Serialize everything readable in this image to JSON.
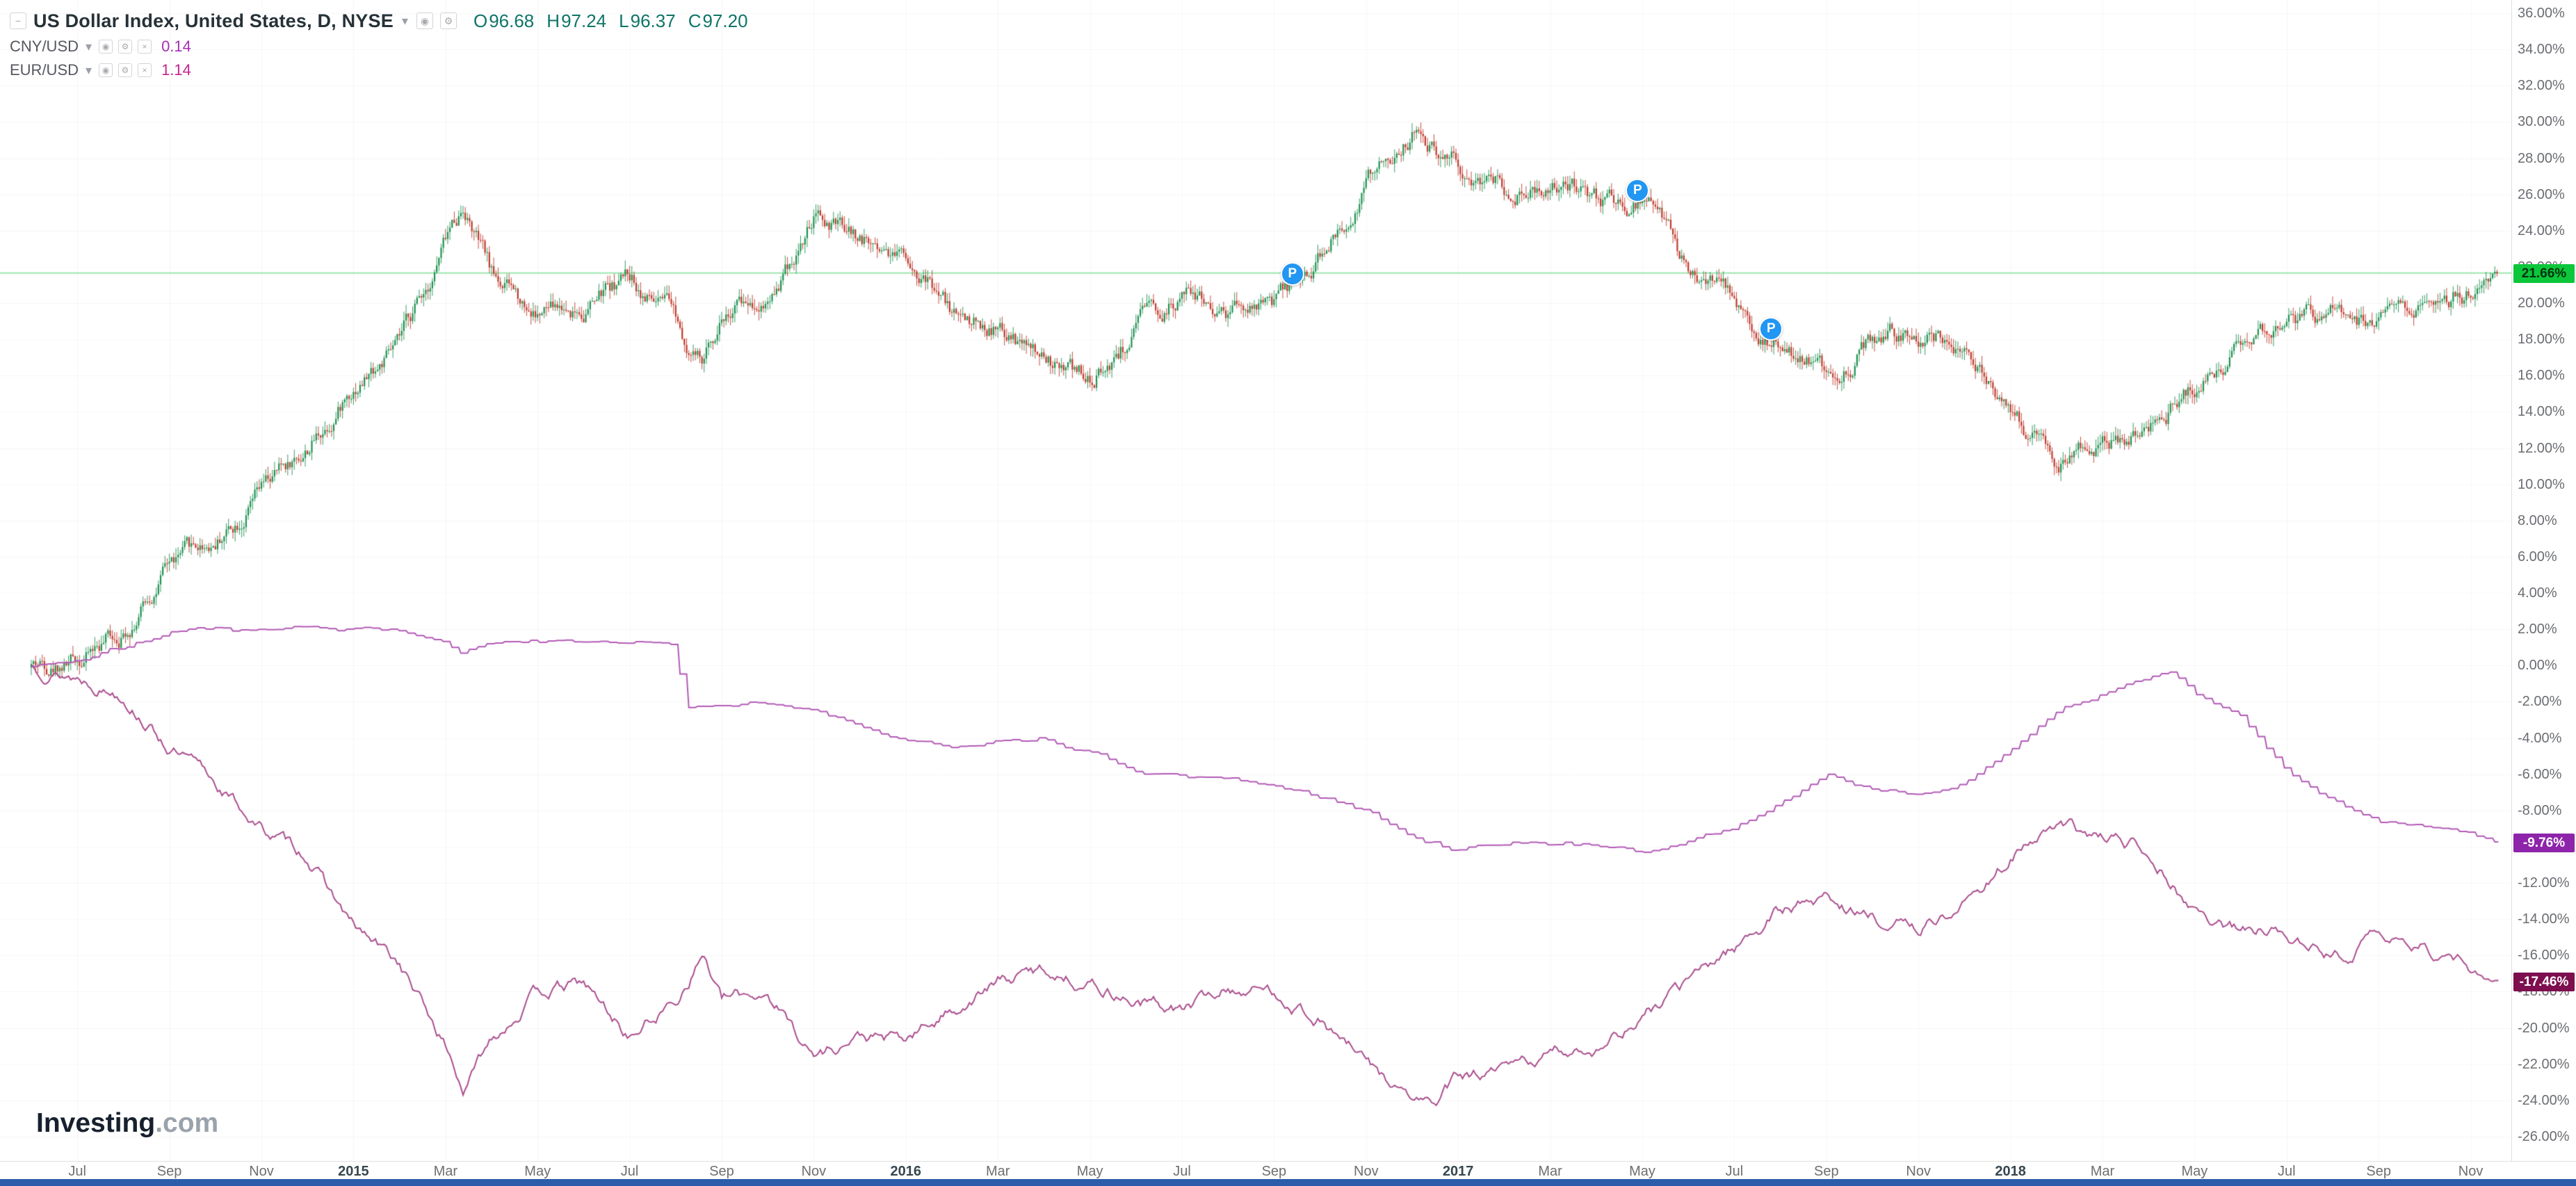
{
  "icons": {
    "collapse": "−",
    "chevron_down": "▾",
    "eye": "◉",
    "settings": "⚙",
    "close": "×",
    "marker": "P"
  },
  "header": {
    "symbol_title": "US Dollar Index, United States, D, NYSE",
    "ohlc_color": "#0e7568",
    "ohlc": {
      "open_label": "O",
      "open": "96.68",
      "high_label": "H",
      "high": "97.24",
      "low_label": "L",
      "low": "96.37",
      "close_label": "C",
      "close": "97.20"
    }
  },
  "legend": {
    "rows": [
      {
        "name": "CNY/USD",
        "value": "0.14",
        "value_color": "#a32fb5"
      },
      {
        "name": "EUR/USD",
        "value": "1.14",
        "value_color": "#c2258d"
      }
    ]
  },
  "watermark": {
    "brand": "Investing",
    "suffix": ".com"
  },
  "price_tags": [
    {
      "name": "dxy-last",
      "label": "21.66%",
      "value": 21.66,
      "bg": "#0cc row",
      "fg": "#00330f"
    },
    {
      "name": "cny-last",
      "label": "-9.76%",
      "value": -9.76,
      "bg": "#8e24aa",
      "fg": "#ffffff"
    },
    {
      "name": "eur-last",
      "label": "-17.46%",
      "value": -17.46,
      "bg": "#7d0f4e",
      "fg": "#ffffff"
    }
  ],
  "footer": {
    "strip_color": "#2b5daa"
  },
  "chart_data": {
    "type": "candlestick+line",
    "title": "US Dollar Index vs CNY/USD and EUR/USD, cumulative % change, daily",
    "x_start": "2014-06",
    "x_end": "2018-11",
    "grid": true,
    "legend_position": "top-left",
    "y_axis": {
      "min": -26,
      "max": 36,
      "step": 2,
      "unit": "%",
      "labels": [
        "36.00%",
        "34.00%",
        "32.00%",
        "30.00%",
        "28.00%",
        "26.00%",
        "24.00%",
        "22.00%",
        "20.00%",
        "18.00%",
        "16.00%",
        "14.00%",
        "12.00%",
        "10.00%",
        "8.00%",
        "6.00%",
        "4.00%",
        "2.00%",
        "0.00%",
        "-2.00%",
        "-4.00%",
        "-6.00%",
        "-8.00%",
        "-10.00%",
        "-12.00%",
        "-14.00%",
        "-16.00%",
        "-18.00%",
        "-20.00%",
        "-22.00%",
        "-24.00%",
        "-26.00%"
      ]
    },
    "x_ticks": [
      {
        "label": "Jul",
        "t": 1
      },
      {
        "label": "Sep",
        "t": 3
      },
      {
        "label": "Nov",
        "t": 5
      },
      {
        "label": "2015",
        "t": 7,
        "year": true
      },
      {
        "label": "Mar",
        "t": 9
      },
      {
        "label": "May",
        "t": 11
      },
      {
        "label": "Jul",
        "t": 13
      },
      {
        "label": "Sep",
        "t": 15
      },
      {
        "label": "Nov",
        "t": 17
      },
      {
        "label": "2016",
        "t": 19,
        "year": true
      },
      {
        "label": "Mar",
        "t": 21
      },
      {
        "label": "May",
        "t": 23
      },
      {
        "label": "Jul",
        "t": 25
      },
      {
        "label": "Sep",
        "t": 27
      },
      {
        "label": "Nov",
        "t": 29
      },
      {
        "label": "2017",
        "t": 31,
        "year": true
      },
      {
        "label": "Mar",
        "t": 33
      },
      {
        "label": "May",
        "t": 35
      },
      {
        "label": "Jul",
        "t": 37
      },
      {
        "label": "Sep",
        "t": 39
      },
      {
        "label": "Nov",
        "t": 41
      },
      {
        "label": "2018",
        "t": 43,
        "year": true
      },
      {
        "label": "Mar",
        "t": 45
      },
      {
        "label": "May",
        "t": 47
      },
      {
        "label": "Jul",
        "t": 49
      },
      {
        "label": "Sep",
        "t": 51
      },
      {
        "label": "Nov",
        "t": 53
      }
    ],
    "reference_line": {
      "value": 21.66,
      "color": "#4ccf6e"
    },
    "markers": [
      {
        "label": "P",
        "t": 27.4,
        "v": 21.6
      },
      {
        "label": "P",
        "t": 34.9,
        "v": 26.2
      },
      {
        "label": "P",
        "t": 37.8,
        "v": 18.6
      }
    ],
    "series": [
      {
        "name": "US Dollar Index",
        "type": "candlestick",
        "up_color": "#1e9150",
        "down_color": "#c0392b",
        "last_label": "21.66%",
        "last_value": 21.66,
        "anchors": [
          [
            0,
            0
          ],
          [
            1,
            0.4
          ],
          [
            2,
            2
          ],
          [
            3,
            5.5
          ],
          [
            4,
            7
          ],
          [
            5,
            9.5
          ],
          [
            6,
            12
          ],
          [
            7,
            15.5
          ],
          [
            8,
            17.5
          ],
          [
            9,
            23.5
          ],
          [
            9.4,
            25.5
          ],
          [
            10,
            21.5
          ],
          [
            11,
            19.5
          ],
          [
            12,
            19.8
          ],
          [
            13,
            21.5
          ],
          [
            14,
            19
          ],
          [
            14.6,
            16.5
          ],
          [
            15,
            19.5
          ],
          [
            16,
            20.5
          ],
          [
            17,
            24.5
          ],
          [
            18,
            23.5
          ],
          [
            19,
            23
          ],
          [
            20,
            19.5
          ],
          [
            21,
            18.5
          ],
          [
            22,
            16.5
          ],
          [
            23,
            15.8
          ],
          [
            24,
            18.5
          ],
          [
            25,
            20.5
          ],
          [
            26,
            19.5
          ],
          [
            27,
            19.6
          ],
          [
            28,
            22.5
          ],
          [
            29,
            26.5
          ],
          [
            30,
            29.3
          ],
          [
            31,
            28
          ],
          [
            32,
            26.5
          ],
          [
            33,
            27
          ],
          [
            34,
            25.5
          ],
          [
            35,
            25.8
          ],
          [
            36,
            22
          ],
          [
            37,
            20.5
          ],
          [
            38,
            17.5
          ],
          [
            39,
            16.2
          ],
          [
            40,
            18
          ],
          [
            41,
            18.5
          ],
          [
            42,
            17.5
          ],
          [
            43,
            14
          ],
          [
            44,
            11.3
          ],
          [
            45,
            12.5
          ],
          [
            46,
            12.8
          ],
          [
            47,
            15.5
          ],
          [
            48,
            17.5
          ],
          [
            49,
            18.5
          ],
          [
            50,
            19.5
          ],
          [
            51,
            18.7
          ],
          [
            52,
            19.8
          ],
          [
            53,
            20.8
          ],
          [
            53.6,
            21.66
          ]
        ]
      },
      {
        "name": "CNY/USD",
        "type": "line",
        "color": "#b25ab6",
        "last_label": "-9.76%",
        "last_value": -9.76,
        "anchors": [
          [
            0,
            0
          ],
          [
            1,
            0.3
          ],
          [
            2,
            1
          ],
          [
            3,
            1.8
          ],
          [
            4,
            2
          ],
          [
            5,
            1.9
          ],
          [
            6,
            2.1
          ],
          [
            7,
            2.1
          ],
          [
            8,
            1.9
          ],
          [
            9,
            1.2
          ],
          [
            9.3,
            0.7
          ],
          [
            10,
            1.2
          ],
          [
            11,
            1.3
          ],
          [
            12,
            1.3
          ],
          [
            13,
            1.3
          ],
          [
            14,
            1.2
          ],
          [
            14.2,
            -2.3
          ],
          [
            15,
            -2.2
          ],
          [
            16,
            -2.1
          ],
          [
            17,
            -2.5
          ],
          [
            18,
            -3.3
          ],
          [
            19,
            -4.2
          ],
          [
            20,
            -4.5
          ],
          [
            21,
            -4.2
          ],
          [
            22,
            -4
          ],
          [
            23,
            -4.8
          ],
          [
            24,
            -5.8
          ],
          [
            25,
            -6.2
          ],
          [
            26,
            -6.3
          ],
          [
            27,
            -6.6
          ],
          [
            28,
            -7.2
          ],
          [
            29,
            -8
          ],
          [
            30,
            -9.5
          ],
          [
            31,
            -10.2
          ],
          [
            32,
            -9.8
          ],
          [
            33,
            -9.8
          ],
          [
            34,
            -9.9
          ],
          [
            35,
            -10.3
          ],
          [
            36,
            -9.7
          ],
          [
            37,
            -9
          ],
          [
            38,
            -7.6
          ],
          [
            39,
            -6
          ],
          [
            40,
            -6.8
          ],
          [
            41,
            -7.2
          ],
          [
            42,
            -6.6
          ],
          [
            43,
            -4.6
          ],
          [
            44,
            -2.6
          ],
          [
            45,
            -1.6
          ],
          [
            46,
            -0.6
          ],
          [
            46.5,
            -0.3
          ],
          [
            47,
            -1.6
          ],
          [
            48,
            -2.8
          ],
          [
            49,
            -5.8
          ],
          [
            50,
            -7.4
          ],
          [
            51,
            -8.6
          ],
          [
            52,
            -8.9
          ],
          [
            53,
            -9.3
          ],
          [
            53.6,
            -9.76
          ]
        ]
      },
      {
        "name": "EUR/USD",
        "type": "line",
        "color": "#ab4e8e",
        "last_label": "-17.46%",
        "last_value": -17.46,
        "anchors": [
          [
            0,
            0
          ],
          [
            1,
            -0.6
          ],
          [
            2,
            -1.5
          ],
          [
            3,
            -4.5
          ],
          [
            4,
            -6.5
          ],
          [
            5,
            -9
          ],
          [
            6,
            -10.5
          ],
          [
            7,
            -14.5
          ],
          [
            8,
            -16.5
          ],
          [
            9,
            -21
          ],
          [
            9.4,
            -23.5
          ],
          [
            10,
            -20.5
          ],
          [
            11,
            -18
          ],
          [
            12,
            -17.6
          ],
          [
            13,
            -20.5
          ],
          [
            14,
            -18.5
          ],
          [
            14.6,
            -15.8
          ],
          [
            15,
            -18.5
          ],
          [
            16,
            -18
          ],
          [
            17,
            -21.5
          ],
          [
            18,
            -20.5
          ],
          [
            19,
            -20.8
          ],
          [
            20,
            -19
          ],
          [
            21,
            -17.5
          ],
          [
            22,
            -16.8
          ],
          [
            23,
            -17.5
          ],
          [
            24,
            -18.5
          ],
          [
            25,
            -19
          ],
          [
            26,
            -17.8
          ],
          [
            27,
            -18
          ],
          [
            28,
            -19.5
          ],
          [
            29,
            -22
          ],
          [
            30,
            -24
          ],
          [
            30.5,
            -24.2
          ],
          [
            31,
            -22.8
          ],
          [
            32,
            -22.5
          ],
          [
            33,
            -21.5
          ],
          [
            34,
            -21
          ],
          [
            35,
            -19.5
          ],
          [
            36,
            -17.5
          ],
          [
            37,
            -15.5
          ],
          [
            38,
            -13.5
          ],
          [
            39,
            -12.8
          ],
          [
            40,
            -14
          ],
          [
            41,
            -14.5
          ],
          [
            42,
            -13.2
          ],
          [
            43,
            -10.5
          ],
          [
            44,
            -9
          ],
          [
            45,
            -9.6
          ],
          [
            46,
            -10
          ],
          [
            47,
            -13.5
          ],
          [
            48,
            -14.8
          ],
          [
            49,
            -14.5
          ],
          [
            50,
            -16.2
          ],
          [
            51,
            -15
          ],
          [
            52,
            -15.6
          ],
          [
            53,
            -16.8
          ],
          [
            53.6,
            -17.46
          ]
        ]
      }
    ]
  }
}
